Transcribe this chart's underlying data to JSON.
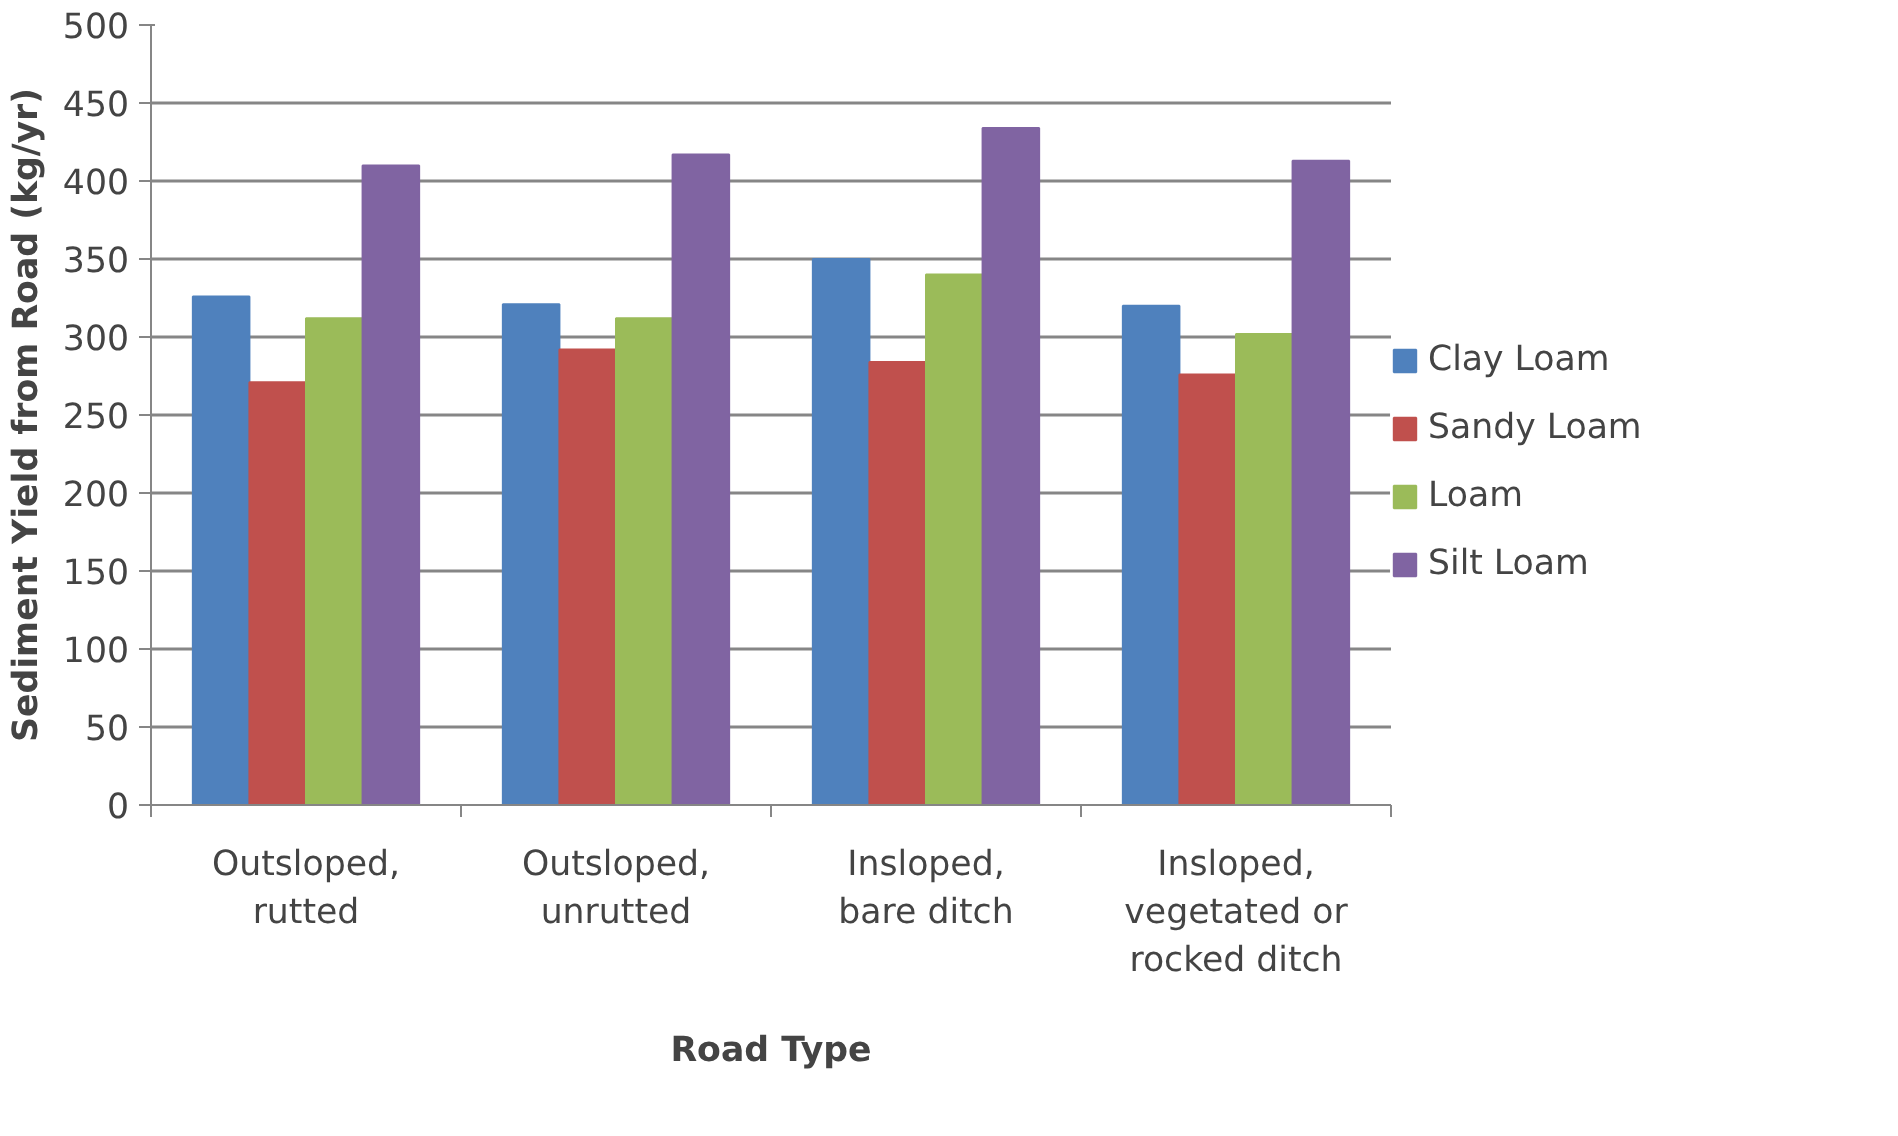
{
  "chart_data": {
    "type": "bar",
    "xlabel": "Road Type",
    "ylabel": "Sediment Yield from Road (kg/yr)",
    "categories": [
      "Outsloped, rutted",
      "Outsloped, unrutted",
      "Insloped, bare ditch",
      "Insloped, vegetated or rocked ditch"
    ],
    "series": [
      {
        "name": "Clay Loam",
        "color": "#4f81bd",
        "values": [
          326,
          321,
          350,
          320
        ]
      },
      {
        "name": "Sandy Loam",
        "color": "#c0504d",
        "values": [
          271,
          292,
          284,
          276
        ]
      },
      {
        "name": "Loam",
        "color": "#9bbb59",
        "values": [
          312,
          312,
          340,
          302
        ]
      },
      {
        "name": "Silt Loam",
        "color": "#8064a2",
        "values": [
          410,
          417,
          434,
          413
        ]
      }
    ],
    "ylim": [
      0,
      500
    ],
    "yticks": [
      0,
      50,
      100,
      150,
      200,
      250,
      300,
      350,
      400,
      450,
      500
    ],
    "grid": "y",
    "legend": "right"
  }
}
